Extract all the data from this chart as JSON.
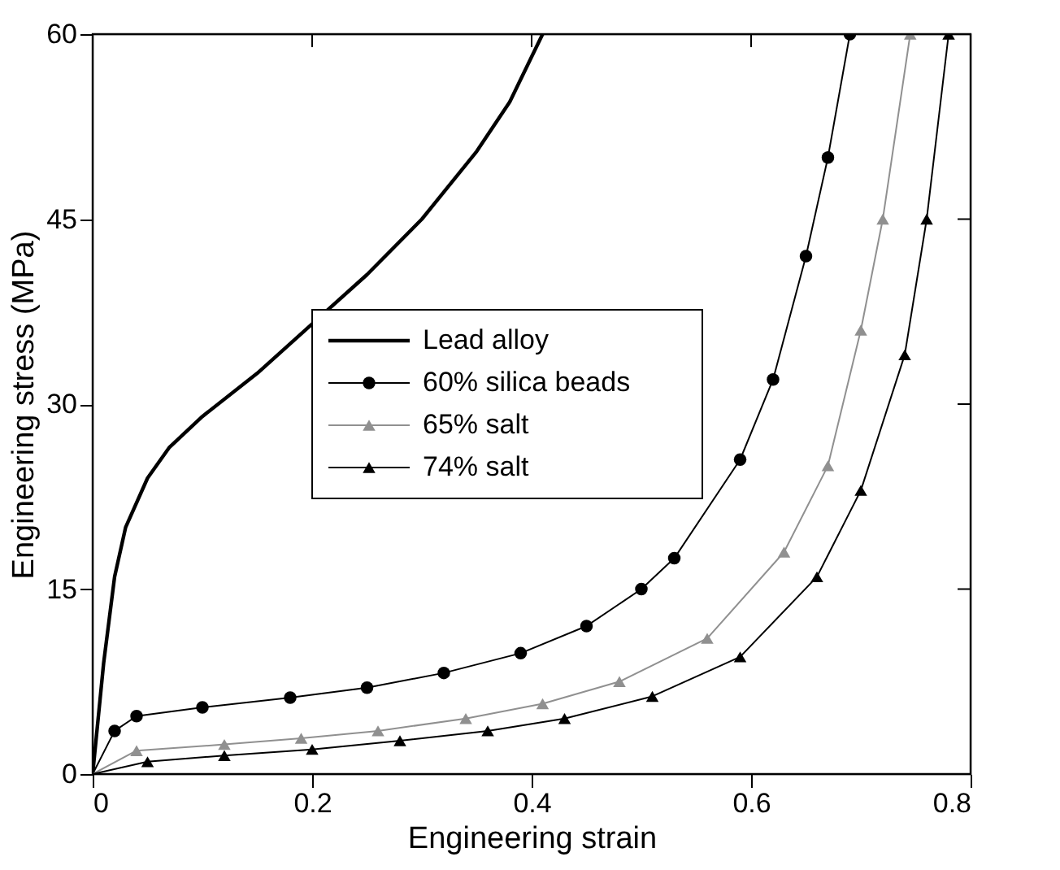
{
  "chart_data": {
    "type": "line",
    "xlabel": "Engineering strain",
    "ylabel": "Engineering stress (MPa)",
    "xlim": [
      0,
      0.8
    ],
    "xticks": [
      0,
      0.2,
      0.4,
      0.6,
      0.8
    ],
    "ylim": [
      0,
      60
    ],
    "yticks": [
      0,
      15,
      30,
      45,
      60
    ],
    "grid": false,
    "legend": "center",
    "series": [
      {
        "name": "Lead alloy",
        "color": "#000000",
        "marker": "none",
        "x": [
          0,
          0.01,
          0.02,
          0.03,
          0.05,
          0.07,
          0.1,
          0.15,
          0.2,
          0.25,
          0.3,
          0.35,
          0.38,
          0.41
        ],
        "values": [
          0,
          9,
          16,
          20,
          24,
          26.5,
          29,
          32.5,
          36.5,
          40.5,
          45,
          50.5,
          54.5,
          60
        ]
      },
      {
        "name": "60% silica beads",
        "color": "#000000",
        "marker": "circle",
        "x": [
          0,
          0.02,
          0.04,
          0.1,
          0.18,
          0.25,
          0.32,
          0.39,
          0.45,
          0.5,
          0.53,
          0.59,
          0.62,
          0.65,
          0.67,
          0.69
        ],
        "values": [
          0,
          3.5,
          4.7,
          5.4,
          6.2,
          7,
          8.2,
          9.8,
          12,
          15,
          17.5,
          25.5,
          32,
          42,
          50,
          60
        ]
      },
      {
        "name": "65% salt",
        "color": "#909090",
        "marker": "triangle",
        "x": [
          0,
          0.04,
          0.12,
          0.19,
          0.26,
          0.34,
          0.41,
          0.48,
          0.56,
          0.63,
          0.67,
          0.7,
          0.72,
          0.745
        ],
        "values": [
          0,
          1.9,
          2.4,
          2.9,
          3.5,
          4.5,
          5.7,
          7.5,
          11,
          18,
          25,
          36,
          45,
          60
        ]
      },
      {
        "name": "74% salt",
        "color": "#000000",
        "marker": "triangle",
        "x": [
          0,
          0.05,
          0.12,
          0.2,
          0.28,
          0.36,
          0.43,
          0.51,
          0.59,
          0.66,
          0.7,
          0.74,
          0.76,
          0.78
        ],
        "values": [
          0,
          1,
          1.5,
          2,
          2.7,
          3.5,
          4.5,
          6.3,
          9.5,
          16,
          23,
          34,
          45,
          60
        ]
      }
    ]
  }
}
